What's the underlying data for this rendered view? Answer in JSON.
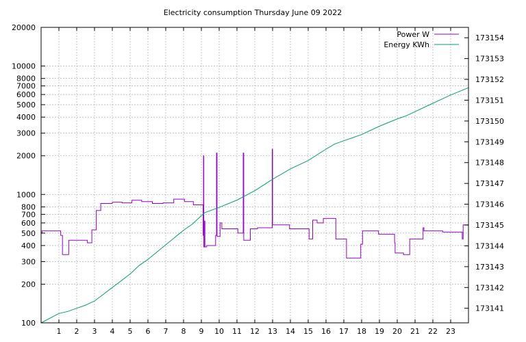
{
  "chart_data": {
    "type": "line",
    "title": "Electricity consumption Thursday June 09 2022",
    "xlabel": "",
    "ylabel": "",
    "y2label": "",
    "x_ticks": [
      1,
      2,
      3,
      4,
      5,
      6,
      7,
      8,
      9,
      10,
      11,
      12,
      13,
      14,
      15,
      16,
      17,
      18,
      19,
      20,
      21,
      22,
      23
    ],
    "xlim": [
      0,
      24
    ],
    "y_scale": "log",
    "ylim": [
      100,
      20000
    ],
    "y_ticks": [
      100,
      200,
      300,
      400,
      500,
      600,
      700,
      800,
      1000,
      2000,
      3000,
      4000,
      5000,
      6000,
      7000,
      8000,
      10000,
      20000
    ],
    "y2lim": [
      173140.3,
      173154.5
    ],
    "y2_ticks": [
      173141,
      173142,
      173143,
      173144,
      173145,
      173146,
      173147,
      173148,
      173149,
      173150,
      173151,
      173152,
      173153,
      173154
    ],
    "grid": true,
    "legend_position": "top-right",
    "series": [
      {
        "name": "Power W",
        "axis": "y",
        "color": "#9400d3",
        "step": true,
        "points": [
          [
            0,
            500
          ],
          [
            0.05,
            520
          ],
          [
            1,
            520
          ],
          [
            1.1,
            480
          ],
          [
            1.2,
            340
          ],
          [
            1.5,
            340
          ],
          [
            1.55,
            440
          ],
          [
            2.5,
            440
          ],
          [
            2.6,
            420
          ],
          [
            2.8,
            420
          ],
          [
            2.85,
            530
          ],
          [
            3.05,
            530
          ],
          [
            3.1,
            750
          ],
          [
            3.3,
            750
          ],
          [
            3.35,
            850
          ],
          [
            3.9,
            850
          ],
          [
            4.0,
            870
          ],
          [
            4.5,
            870
          ],
          [
            4.55,
            860
          ],
          [
            5.05,
            860
          ],
          [
            5.1,
            900
          ],
          [
            5.6,
            900
          ],
          [
            5.65,
            880
          ],
          [
            6.2,
            880
          ],
          [
            6.25,
            850
          ],
          [
            6.8,
            850
          ],
          [
            6.85,
            860
          ],
          [
            7.4,
            860
          ],
          [
            7.45,
            920
          ],
          [
            8.0,
            920
          ],
          [
            8.05,
            880
          ],
          [
            8.5,
            880
          ],
          [
            8.55,
            830
          ],
          [
            9.05,
            830
          ],
          [
            9.1,
            480
          ],
          [
            9.12,
            2000
          ],
          [
            9.14,
            390
          ],
          [
            9.18,
            620
          ],
          [
            9.2,
            390
          ],
          [
            9.3,
            400
          ],
          [
            9.75,
            400
          ],
          [
            9.8,
            480
          ],
          [
            9.85,
            2100
          ],
          [
            9.88,
            470
          ],
          [
            10.0,
            470
          ],
          [
            10.05,
            600
          ],
          [
            10.15,
            540
          ],
          [
            11.0,
            540
          ],
          [
            11.05,
            500
          ],
          [
            11.3,
            500
          ],
          [
            11.35,
            2100
          ],
          [
            11.38,
            440
          ],
          [
            11.7,
            440
          ],
          [
            11.75,
            540
          ],
          [
            12.1,
            540
          ],
          [
            12.15,
            550
          ],
          [
            12.95,
            550
          ],
          [
            12.98,
            2250
          ],
          [
            13.0,
            580
          ],
          [
            13.9,
            580
          ],
          [
            13.95,
            540
          ],
          [
            15.0,
            540
          ],
          [
            15.05,
            450
          ],
          [
            15.2,
            450
          ],
          [
            15.25,
            630
          ],
          [
            15.45,
            630
          ],
          [
            15.5,
            600
          ],
          [
            15.8,
            600
          ],
          [
            15.85,
            650
          ],
          [
            16.5,
            650
          ],
          [
            16.55,
            450
          ],
          [
            17.1,
            450
          ],
          [
            17.15,
            320
          ],
          [
            17.9,
            320
          ],
          [
            17.95,
            410
          ],
          [
            18.0,
            410
          ],
          [
            18.05,
            520
          ],
          [
            18.9,
            520
          ],
          [
            18.95,
            490
          ],
          [
            19.8,
            490
          ],
          [
            19.85,
            420
          ],
          [
            19.88,
            350
          ],
          [
            20.3,
            350
          ],
          [
            20.35,
            340
          ],
          [
            20.65,
            340
          ],
          [
            20.7,
            450
          ],
          [
            21.4,
            450
          ],
          [
            21.45,
            550
          ],
          [
            21.5,
            520
          ],
          [
            22.5,
            520
          ],
          [
            22.55,
            510
          ],
          [
            23.6,
            510
          ],
          [
            23.65,
            450
          ],
          [
            23.7,
            580
          ],
          [
            24,
            580
          ]
        ]
      },
      {
        "name": "Energy KWh",
        "axis": "y2",
        "color": "#009e73",
        "step": false,
        "points": [
          [
            0,
            173140.3
          ],
          [
            1,
            173140.75
          ],
          [
            1.5,
            173140.85
          ],
          [
            2,
            173141.0
          ],
          [
            2.5,
            173141.15
          ],
          [
            3,
            173141.35
          ],
          [
            4,
            173142.0
          ],
          [
            5,
            173142.65
          ],
          [
            5.5,
            173143.05
          ],
          [
            6,
            173143.35
          ],
          [
            7,
            173144.05
          ],
          [
            8,
            173144.75
          ],
          [
            8.5,
            173145.05
          ],
          [
            9,
            173145.45
          ],
          [
            9.2,
            173145.6
          ],
          [
            10,
            173145.85
          ],
          [
            11,
            173146.2
          ],
          [
            12,
            173146.65
          ],
          [
            13,
            173147.2
          ],
          [
            14,
            173147.7
          ],
          [
            15,
            173148.1
          ],
          [
            16,
            173148.65
          ],
          [
            16.5,
            173148.9
          ],
          [
            17,
            173149.05
          ],
          [
            18,
            173149.35
          ],
          [
            19,
            173149.75
          ],
          [
            20,
            173150.1
          ],
          [
            20.5,
            173150.25
          ],
          [
            21,
            173150.45
          ],
          [
            22,
            173150.85
          ],
          [
            23,
            173151.25
          ],
          [
            24,
            173151.6
          ]
        ]
      }
    ]
  }
}
